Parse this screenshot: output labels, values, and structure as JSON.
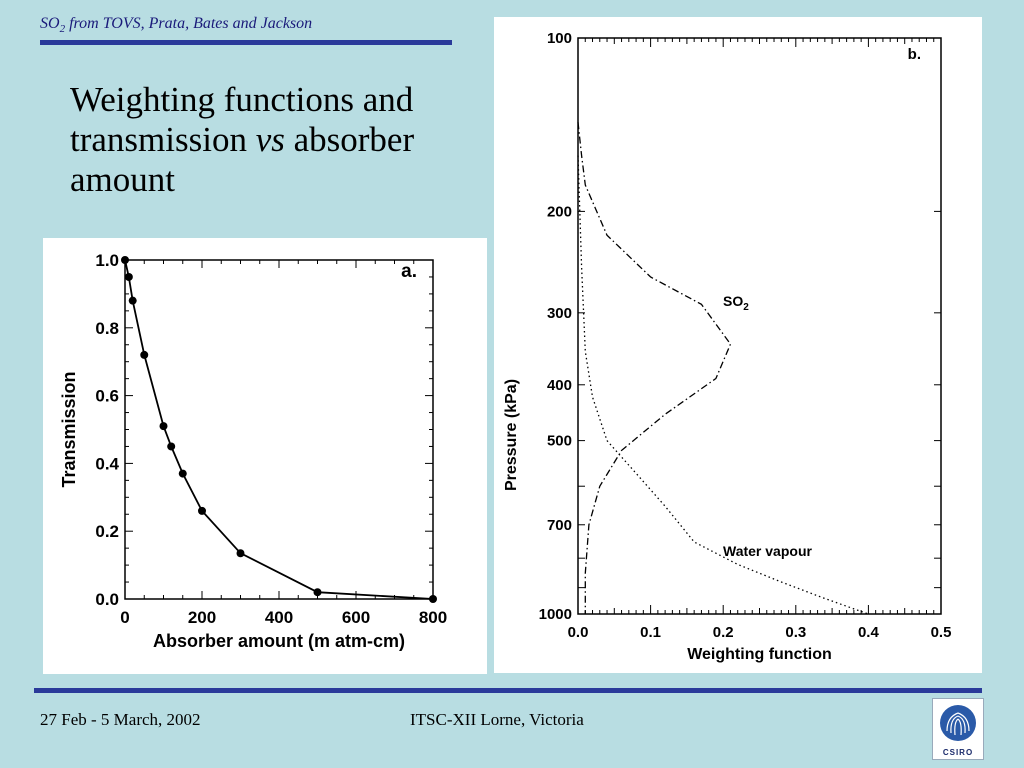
{
  "header": {
    "so_main": "SO",
    "so_sub": "2",
    "rest": " from TOVS, Prata, Bates and Jackson"
  },
  "title": {
    "line1": "Weighting functions and",
    "line2_a": "transmission ",
    "line2_vs": "vs",
    "line2_b": " absorber",
    "line3": "amount"
  },
  "footer": {
    "date": "27 Feb - 5 March, 2002",
    "venue": "ITSC-XII Lorne, Victoria",
    "logo_text": "CSIRO"
  },
  "colors": {
    "background": "#b8dde2",
    "accent_rule": "#2a3a9a",
    "header_text": "#1a1a7a"
  },
  "chart_data": [
    {
      "type": "line",
      "panel_label": "a.",
      "title": "",
      "xlabel": "Absorber amount (m atm-cm)",
      "ylabel": "Transmission",
      "xlim": [
        0,
        800
      ],
      "ylim": [
        0,
        1.0
      ],
      "xticks": [
        "0",
        "200",
        "400",
        "600",
        "800"
      ],
      "yticks": [
        "0.0",
        "0.2",
        "0.4",
        "0.6",
        "0.8",
        "1.0"
      ],
      "grid": false,
      "series": [
        {
          "marker": "circle",
          "x": [
            0,
            10,
            20,
            50,
            100,
            120,
            150,
            200,
            300,
            500,
            800
          ],
          "y": [
            1.0,
            0.95,
            0.88,
            0.72,
            0.51,
            0.45,
            0.37,
            0.26,
            0.135,
            0.02,
            0.0
          ]
        }
      ]
    },
    {
      "type": "line",
      "panel_label": "b.",
      "title": "",
      "xlabel": "Weighting function",
      "ylabel": "Pressure (kPa)",
      "xlim": [
        0,
        0.5
      ],
      "ylim": [
        1000,
        100
      ],
      "yscale": "log",
      "xticks": [
        "0.0",
        "0.1",
        "0.2",
        "0.3",
        "0.4",
        "0.5"
      ],
      "yticks": [
        "100",
        "200",
        "300",
        "400",
        "500",
        "700",
        "1000"
      ],
      "grid": false,
      "series": [
        {
          "name": "SO2",
          "label_main": "SO",
          "label_sub": "2",
          "style": "dash-dot",
          "x": [
            0.0,
            0.005,
            0.01,
            0.04,
            0.1,
            0.17,
            0.21,
            0.19,
            0.12,
            0.06,
            0.03,
            0.015,
            0.01,
            0.01
          ],
          "y": [
            140,
            160,
            180,
            220,
            260,
            290,
            340,
            390,
            450,
            520,
            600,
            700,
            850,
            1000
          ]
        },
        {
          "name": "Water vapour",
          "label_main": "Water vapour",
          "style": "dotted",
          "x": [
            0.0,
            0.005,
            0.01,
            0.02,
            0.04,
            0.08,
            0.12,
            0.16,
            0.22,
            0.28,
            0.34,
            0.4
          ],
          "y": [
            160,
            250,
            350,
            420,
            500,
            570,
            650,
            750,
            820,
            880,
            940,
            1000
          ]
        }
      ]
    }
  ]
}
